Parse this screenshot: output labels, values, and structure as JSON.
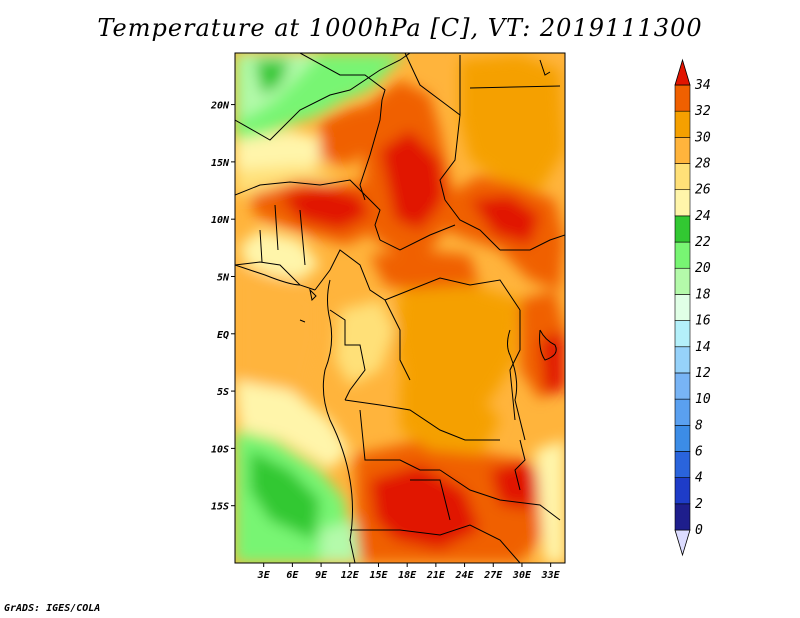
{
  "title": "Temperature at 1000hPa [C], VT: 2019111300",
  "credit": "GrADS: IGES/COLA",
  "map": {
    "lat_range": [
      -20,
      24.5
    ],
    "lon_range": [
      0,
      34.5
    ],
    "lat_ticks": [
      {
        "value": 20,
        "label": "20N"
      },
      {
        "value": 15,
        "label": "15N"
      },
      {
        "value": 10,
        "label": "10N"
      },
      {
        "value": 5,
        "label": "5N"
      },
      {
        "value": 0,
        "label": "EQ"
      },
      {
        "value": -5,
        "label": "5S"
      },
      {
        "value": -10,
        "label": "10S"
      },
      {
        "value": -15,
        "label": "15S"
      }
    ],
    "lon_ticks": [
      {
        "value": 3,
        "label": "3E"
      },
      {
        "value": 6,
        "label": "6E"
      },
      {
        "value": 9,
        "label": "9E"
      },
      {
        "value": 12,
        "label": "12E"
      },
      {
        "value": 15,
        "label": "15E"
      },
      {
        "value": 18,
        "label": "18E"
      },
      {
        "value": 21,
        "label": "21E"
      },
      {
        "value": 24,
        "label": "24E"
      },
      {
        "value": 27,
        "label": "27E"
      },
      {
        "value": 30,
        "label": "30E"
      },
      {
        "value": 33,
        "label": "33E"
      }
    ]
  },
  "colorbar": {
    "levels": [
      "0",
      "2",
      "4",
      "6",
      "8",
      "10",
      "12",
      "14",
      "16",
      "18",
      "20",
      "22",
      "24",
      "26",
      "28",
      "30",
      "32",
      "34"
    ],
    "colors": [
      "#1e1e8c",
      "#1e3cc8",
      "#2a64dc",
      "#3c8ce6",
      "#5aa0f0",
      "#78b4f5",
      "#96d2fa",
      "#b4f0fa",
      "#e0ffe6",
      "#b4faaa",
      "#78f573",
      "#32c832",
      "#fff5aa",
      "#ffe078",
      "#ffb43c",
      "#f5a000",
      "#f06000",
      "#e11400"
    ],
    "under_color": "#dcdcff",
    "over_color": "#c80000"
  }
}
